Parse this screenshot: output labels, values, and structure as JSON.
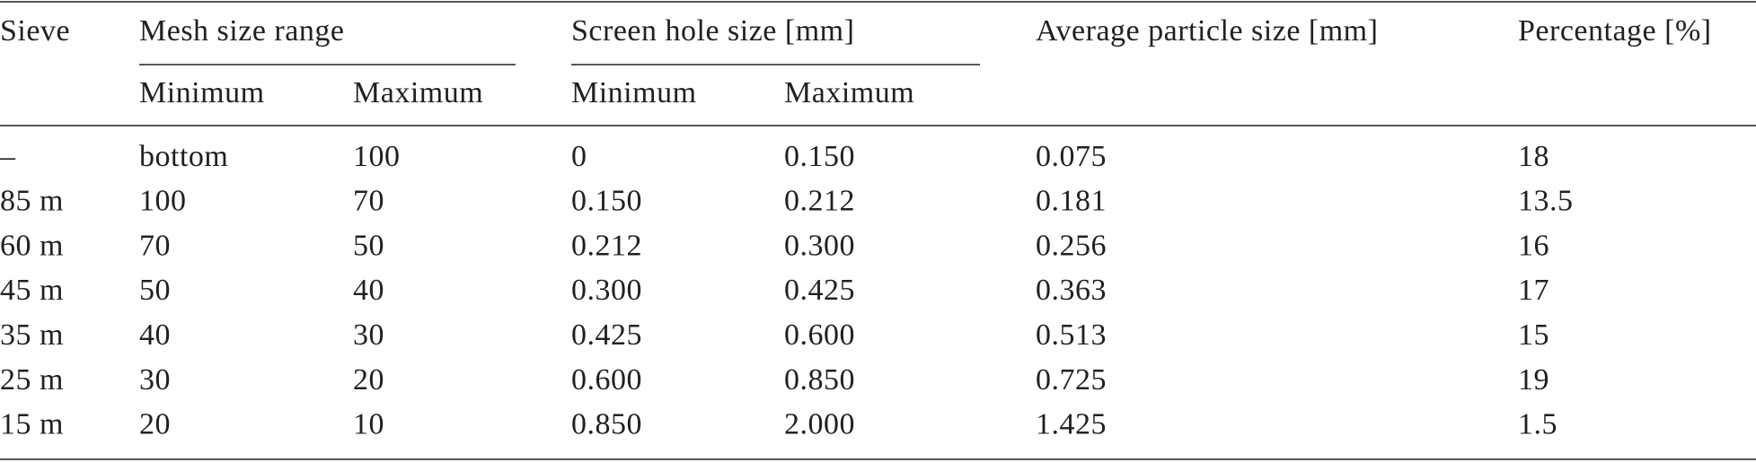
{
  "table": {
    "header": {
      "sieve": "Sieve",
      "mesh": "Mesh size range",
      "screen": "Screen hole size [mm]",
      "average": "Average particle size [mm]",
      "percentage": "Percentage [%]",
      "subheaders": [
        "Minimum",
        "Maximum",
        "Minimum",
        "Maximum"
      ]
    },
    "rows": [
      [
        "–",
        "bottom",
        "100",
        "0",
        "0.150",
        "0.075",
        "18"
      ],
      [
        "85 m",
        "100",
        "70",
        "0.150",
        "0.212",
        "0.181",
        "13.5"
      ],
      [
        "60 m",
        "70",
        "50",
        "0.212",
        "0.300",
        "0.256",
        "16"
      ],
      [
        "45 m",
        "50",
        "40",
        "0.300",
        "0.425",
        "0.363",
        "17"
      ],
      [
        "35 m",
        "40",
        "30",
        "0.425",
        "0.600",
        "0.513",
        "15"
      ],
      [
        "25 m",
        "30",
        "20",
        "0.600",
        "0.850",
        "0.725",
        "19"
      ],
      [
        "15 m",
        "20",
        "10",
        "0.850",
        "2.000",
        "1.425",
        "1.5"
      ]
    ]
  }
}
